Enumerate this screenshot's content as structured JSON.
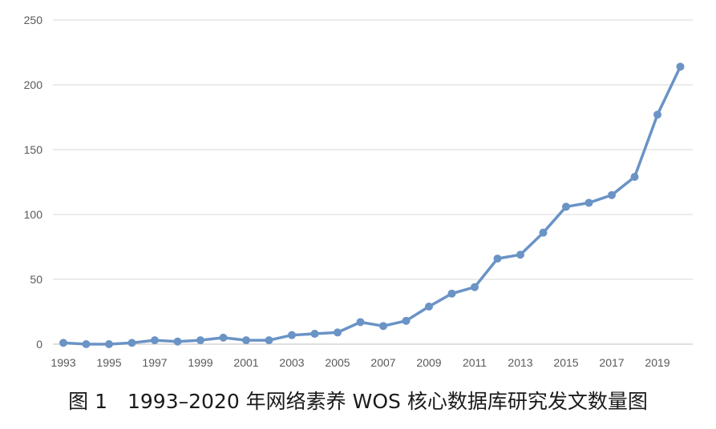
{
  "caption": "图 1　1993–2020 年网络素养 WOS 核心数据库研究发文数量图",
  "chart_data": {
    "type": "line",
    "title": "",
    "xlabel": "",
    "ylabel": "",
    "x": [
      1993,
      1994,
      1995,
      1996,
      1997,
      1998,
      1999,
      2000,
      2001,
      2002,
      2003,
      2004,
      2005,
      2006,
      2007,
      2008,
      2009,
      2010,
      2011,
      2012,
      2013,
      2014,
      2015,
      2016,
      2017,
      2018,
      2019,
      2020
    ],
    "x_tick_labels": [
      "1993",
      "1995",
      "1997",
      "1999",
      "2001",
      "2003",
      "2005",
      "2007",
      "2009",
      "2011",
      "2013",
      "2015",
      "2017",
      "2019"
    ],
    "y_ticks": [
      0,
      50,
      100,
      150,
      200,
      250
    ],
    "ylim": [
      0,
      250
    ],
    "grid": true,
    "legend": "none",
    "series": [
      {
        "values": [
          1,
          0,
          0,
          1,
          3,
          2,
          3,
          5,
          3,
          3,
          7,
          8,
          9,
          17,
          14,
          18,
          29,
          39,
          44,
          66,
          69,
          86,
          106,
          109,
          115,
          129,
          177,
          214
        ],
        "color": "#6a93c6"
      }
    ]
  }
}
